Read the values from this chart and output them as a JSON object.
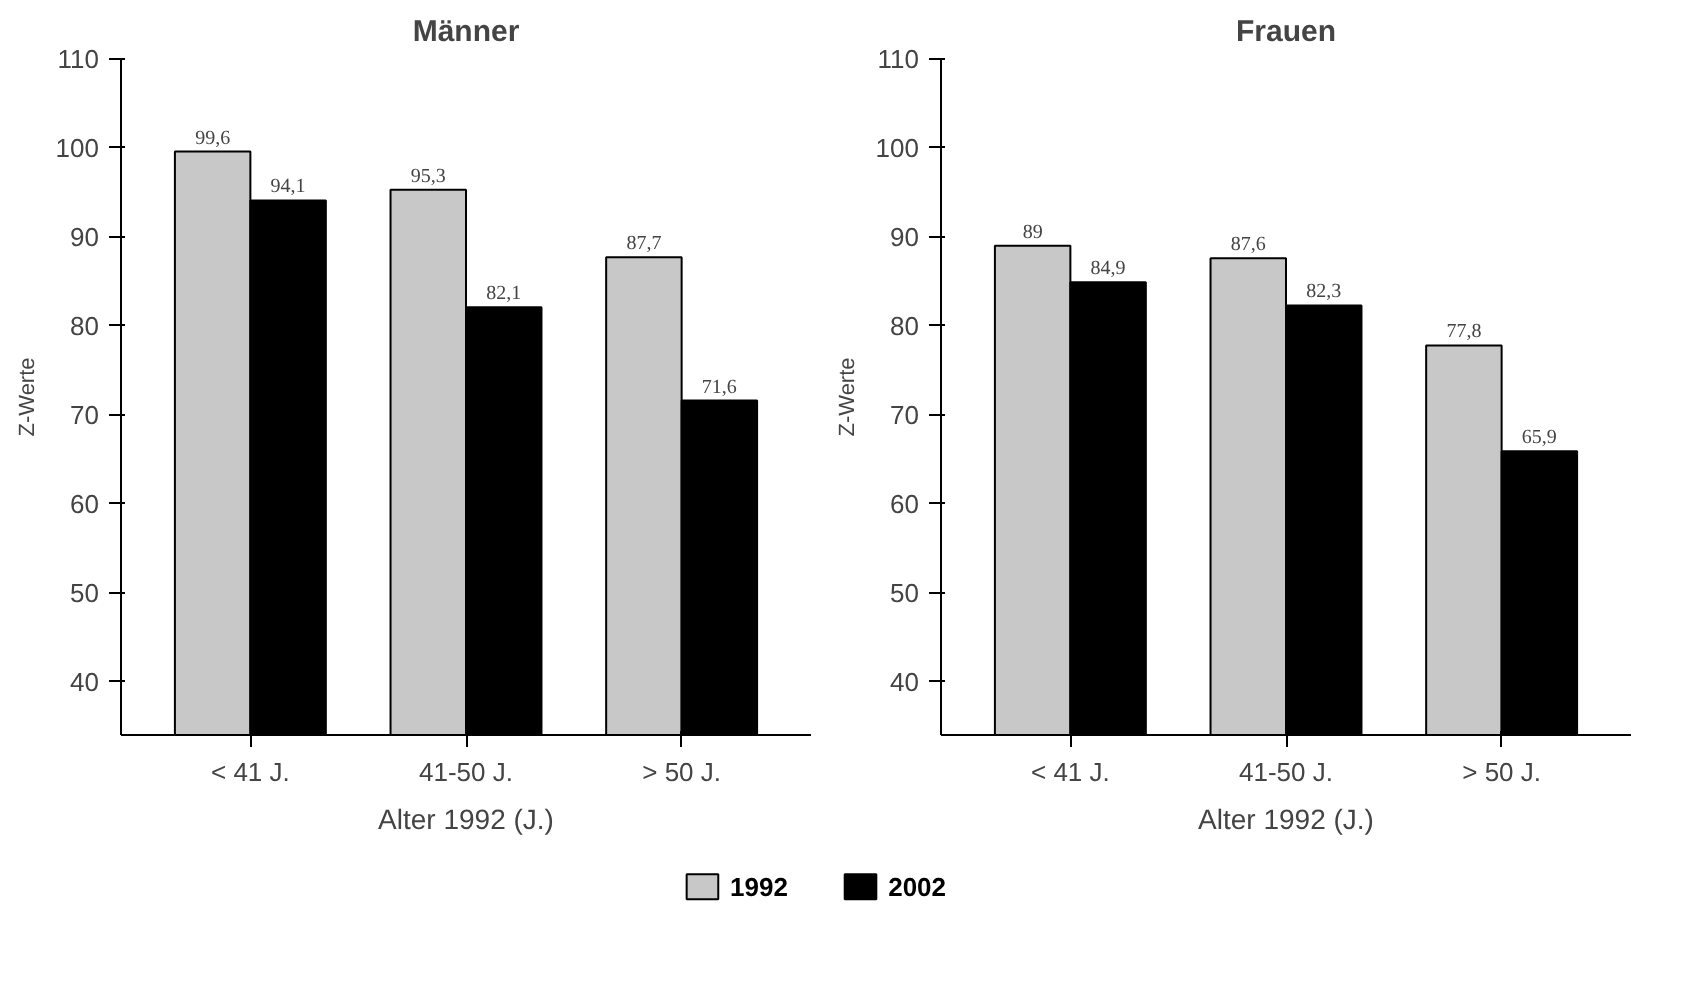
{
  "chart_data": [
    {
      "type": "bar",
      "title": "Männer",
      "xlabel": "Alter 1992 (J.)",
      "ylabel": "Z-Werte",
      "categories": [
        "< 41 J.",
        "41-50 J.",
        "> 50 J."
      ],
      "ylim": [
        34,
        110
      ],
      "yticks": [
        40,
        50,
        60,
        70,
        80,
        90,
        100,
        110
      ],
      "grid": false,
      "legend": "bottom",
      "series": [
        {
          "name": "1992",
          "color": "#c8c8c8",
          "values": [
            99.6,
            95.3,
            87.7
          ],
          "value_labels": [
            "99,6",
            "95,3",
            "87,7"
          ]
        },
        {
          "name": "2002",
          "color": "#000000",
          "values": [
            94.1,
            82.1,
            71.6
          ],
          "value_labels": [
            "94,1",
            "82,1",
            "71,6"
          ]
        }
      ]
    },
    {
      "type": "bar",
      "title": "Frauen",
      "xlabel": "Alter 1992 (J.)",
      "ylabel": "Z-Werte",
      "categories": [
        "< 41 J.",
        "41-50 J.",
        "> 50 J."
      ],
      "ylim": [
        34,
        110
      ],
      "yticks": [
        40,
        50,
        60,
        70,
        80,
        90,
        100,
        110
      ],
      "grid": false,
      "series": [
        {
          "color": "#c8c8c8",
          "values": [
            89,
            87.6,
            77.8
          ],
          "value_labels": [
            "89",
            "87,6",
            "77,8"
          ]
        },
        {
          "color": "#000000",
          "values": [
            84.9,
            82.3,
            65.9
          ],
          "value_labels": [
            "84,9",
            "82,3",
            "65,9"
          ]
        }
      ]
    }
  ]
}
